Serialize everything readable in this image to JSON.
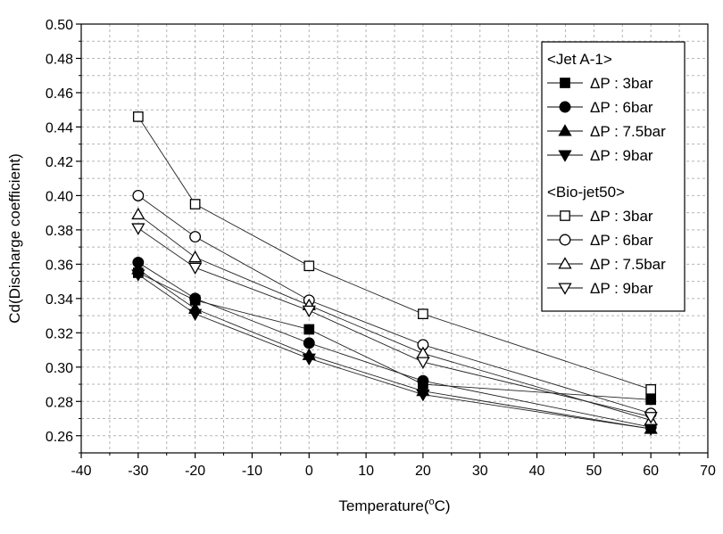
{
  "chart_data": {
    "type": "line",
    "title": "",
    "xlabel": "Temperature(",
    "xlabel_unit_sup": "o",
    "xlabel_unit": "C)",
    "ylabel": "Cd(Discharge coefficient)",
    "xlim": [
      -40,
      70
    ],
    "ylim": [
      0.25,
      0.5
    ],
    "grid": true,
    "legend_position": "top-right",
    "x_ticks": [
      "-40",
      "-30",
      "-20",
      "-10",
      "0",
      "10",
      "20",
      "30",
      "40",
      "50",
      "60",
      "70"
    ],
    "y_ticks": [
      "0.26",
      "0.28",
      "0.30",
      "0.32",
      "0.34",
      "0.36",
      "0.38",
      "0.40",
      "0.42",
      "0.44",
      "0.46",
      "0.48",
      "0.50"
    ],
    "x": [
      -30,
      -20,
      0,
      20,
      60
    ],
    "legend_groups": [
      {
        "title": "<Jet A-1>"
      },
      {
        "title": "<Bio-jet50>"
      }
    ],
    "series": [
      {
        "name": "ΔP : 3bar",
        "group": 0,
        "marker": "square",
        "filled": true,
        "values": [
          0.355,
          0.339,
          0.322,
          0.29,
          0.281
        ]
      },
      {
        "name": "ΔP : 6bar",
        "group": 0,
        "marker": "circle",
        "filled": true,
        "values": [
          0.361,
          0.34,
          0.314,
          0.292,
          0.265
        ]
      },
      {
        "name": "ΔP : 7.5bar",
        "group": 0,
        "marker": "triangle-up",
        "filled": true,
        "values": [
          0.357,
          0.334,
          0.307,
          0.286,
          0.264
        ]
      },
      {
        "name": "ΔP : 9bar",
        "group": 0,
        "marker": "triangle-down",
        "filled": true,
        "values": [
          0.354,
          0.331,
          0.305,
          0.284,
          0.264
        ]
      },
      {
        "name": "ΔP : 3bar",
        "group": 1,
        "marker": "square",
        "filled": false,
        "values": [
          0.446,
          0.395,
          0.359,
          0.331,
          0.287
        ]
      },
      {
        "name": "ΔP : 6bar",
        "group": 1,
        "marker": "circle",
        "filled": false,
        "values": [
          0.4,
          0.376,
          0.339,
          0.313,
          0.273
        ]
      },
      {
        "name": "ΔP : 7.5bar",
        "group": 1,
        "marker": "triangle-up",
        "filled": false,
        "values": [
          0.389,
          0.364,
          0.336,
          0.308,
          0.269
        ]
      },
      {
        "name": "ΔP : 9bar",
        "group": 1,
        "marker": "triangle-down",
        "filled": false,
        "values": [
          0.381,
          0.358,
          0.333,
          0.303,
          0.271
        ]
      }
    ]
  }
}
